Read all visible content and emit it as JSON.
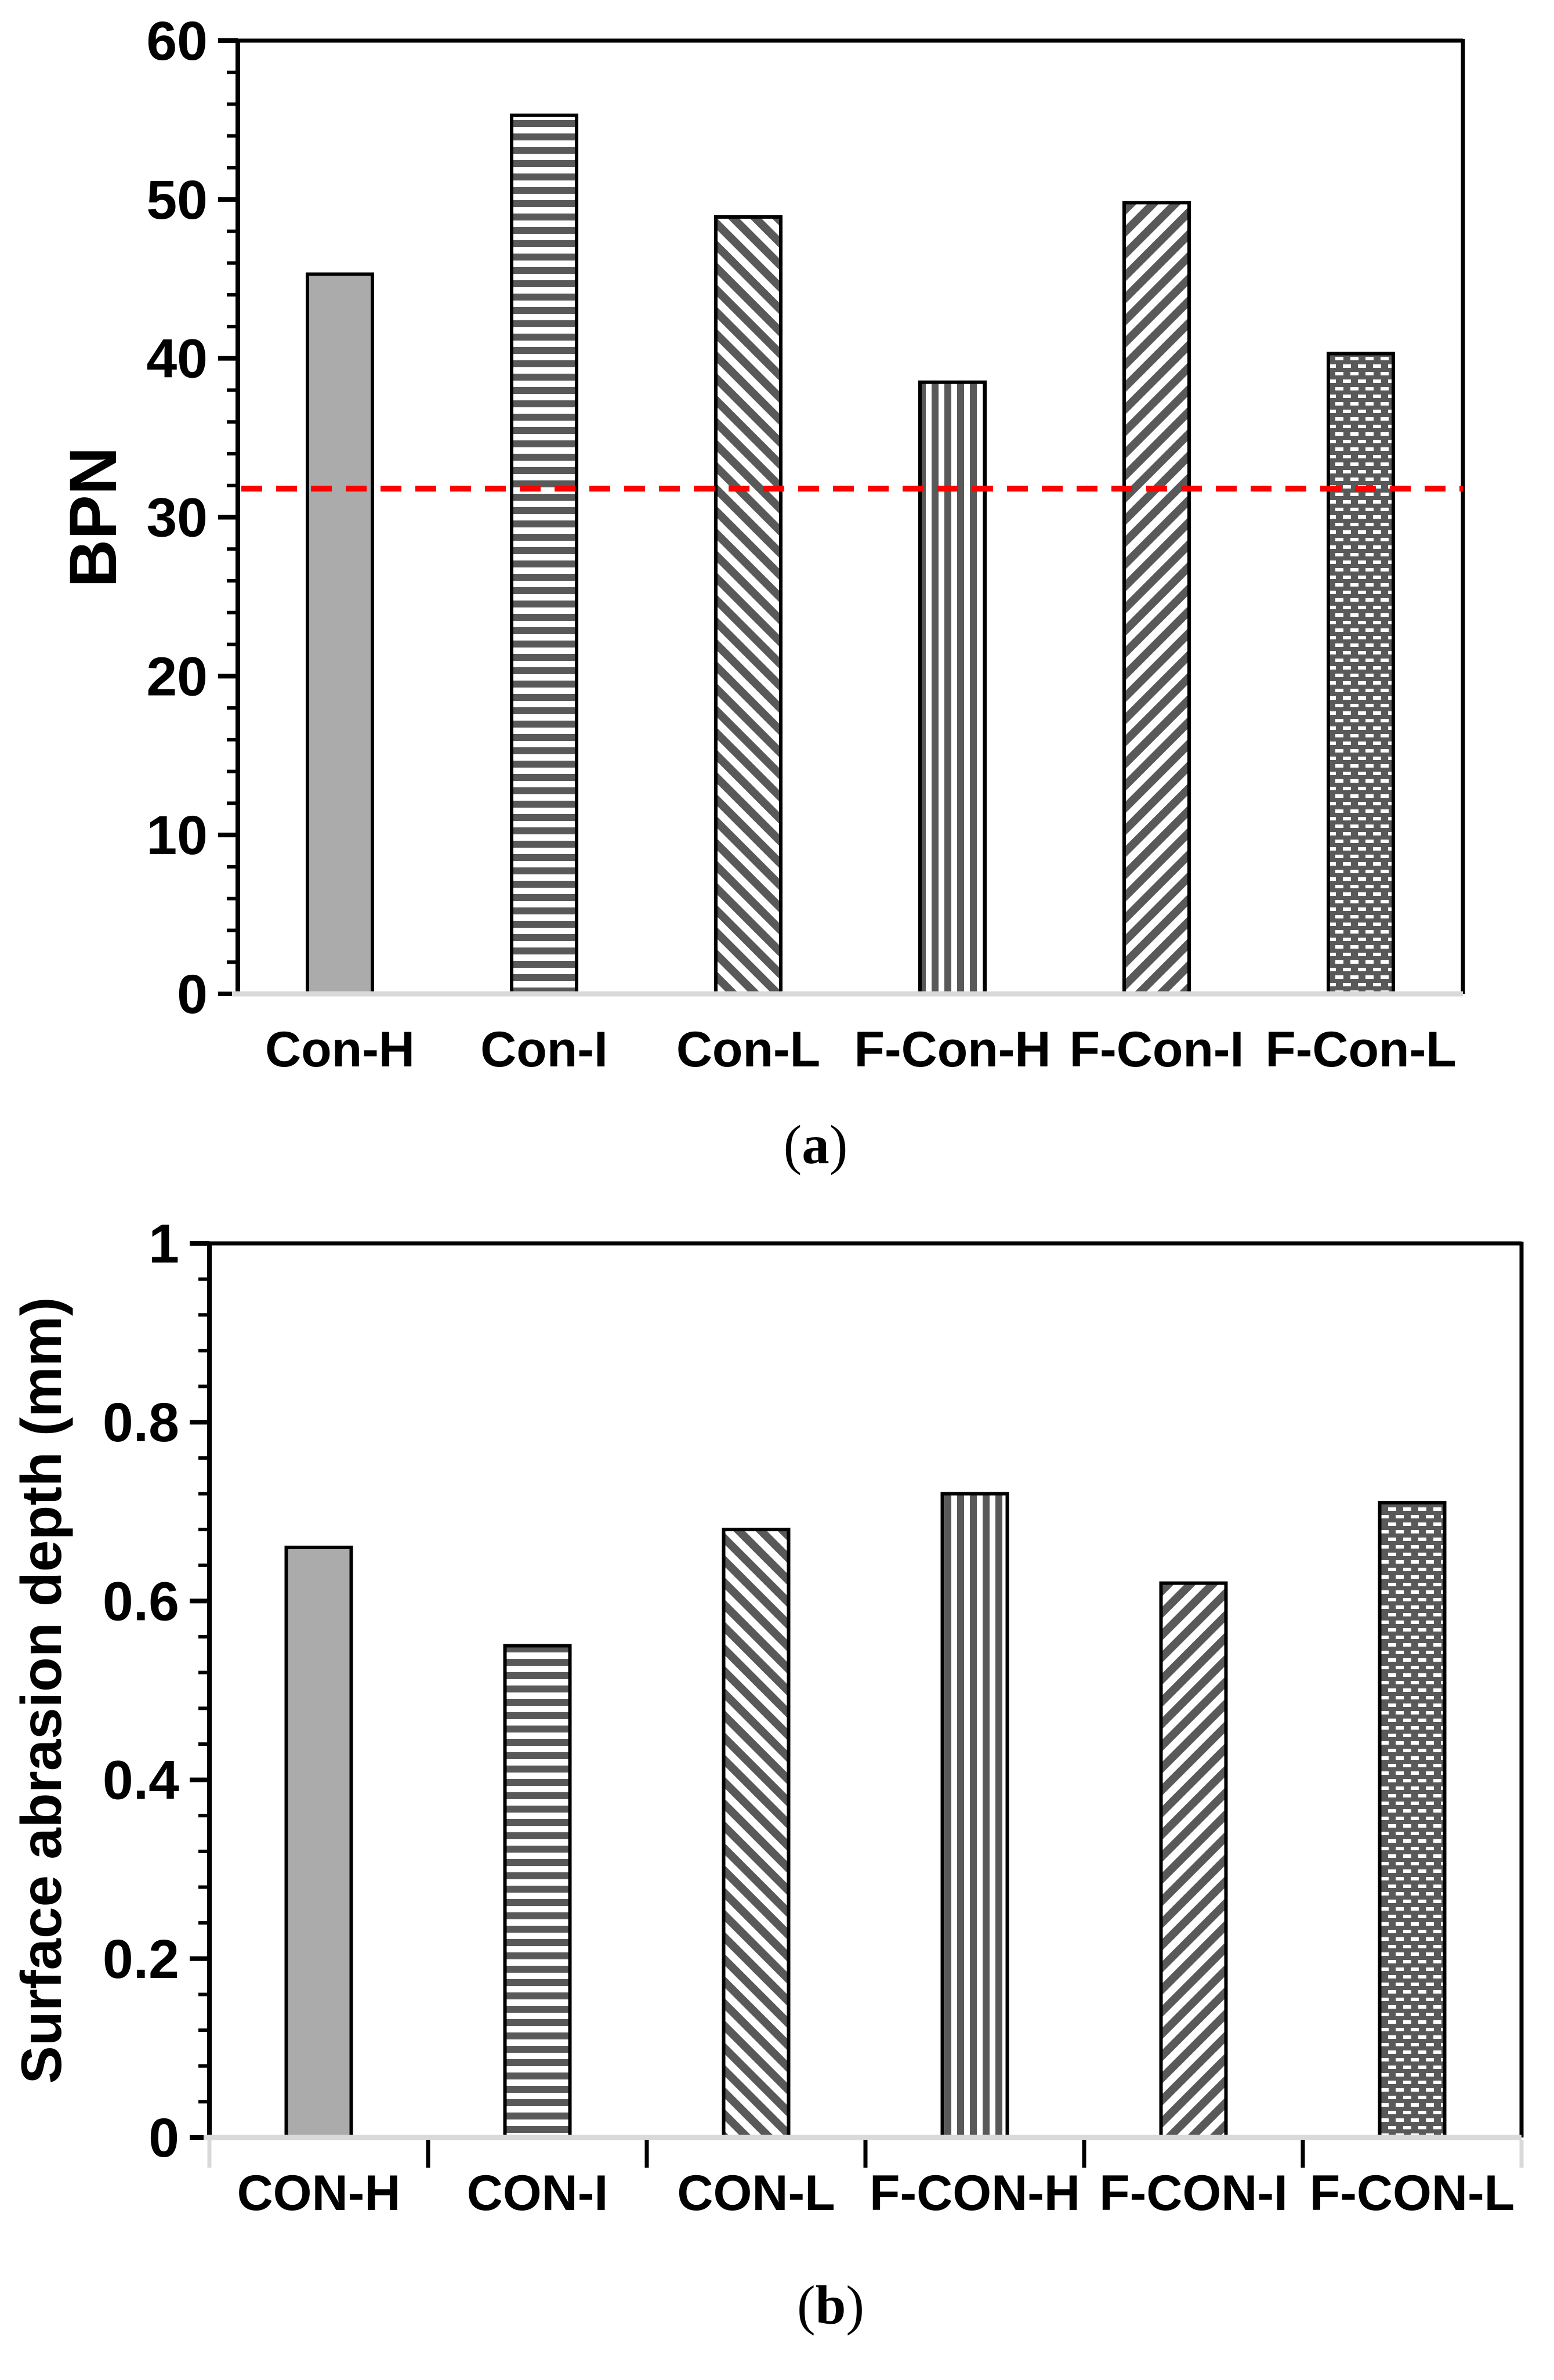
{
  "figure": {
    "background": "#FFFFFF",
    "caption_a": "(a)",
    "caption_b": "(b)"
  },
  "colors": {
    "bar_gray": "#ABABAB",
    "pattern_dark": "#595959",
    "outline": "#000000",
    "axis_black": "#000000",
    "axis_light": "#D9D9D9",
    "ref_red": "#FF0000",
    "text": "#000000"
  },
  "chart_data": [
    {
      "id": "a",
      "type": "bar",
      "caption": "(a)",
      "title": "",
      "xlabel": "",
      "ylabel": "BPN",
      "ylim": [
        0,
        60
      ],
      "ytick_step": 10,
      "yminor_step": 2,
      "ytick_labels": [
        "0",
        "10",
        "20",
        "30",
        "40",
        "50",
        "60"
      ],
      "categories": [
        "Con-H",
        "Con-I",
        "Con-L",
        "F-Con-H",
        "F-Con-I",
        "F-Con-L"
      ],
      "values": [
        45.3,
        55.3,
        48.9,
        38.5,
        49.8,
        40.3
      ],
      "bar_patterns": [
        "solid-gray",
        "horizontal-stripes",
        "diagonal-down-stripes",
        "vertical-stripes",
        "diagonal-up-stripes",
        "brick-dots"
      ],
      "ref_line": {
        "value": 31.8,
        "color": "#FF0000",
        "style": "dashed"
      },
      "grid": false,
      "legend": null,
      "x_boundary_ticks": false
    },
    {
      "id": "b",
      "type": "bar",
      "caption": "(b)",
      "title": "",
      "xlabel": "",
      "ylabel": "Surface abrasion depth (mm)",
      "ylim": [
        0,
        1
      ],
      "ytick_step": 0.2,
      "yminor_step": 0.04,
      "ytick_labels": [
        "0",
        "0.2",
        "0.4",
        "0.6",
        "0.8",
        "1"
      ],
      "categories": [
        "CON-H",
        "CON-I",
        "CON-L",
        "F-CON-H",
        "F-CON-I",
        "F-CON-L"
      ],
      "values": [
        0.66,
        0.55,
        0.68,
        0.72,
        0.62,
        0.71
      ],
      "bar_patterns": [
        "solid-gray",
        "horizontal-stripes",
        "diagonal-down-stripes",
        "vertical-stripes",
        "diagonal-up-stripes",
        "brick-dots"
      ],
      "ref_line": null,
      "grid": false,
      "legend": null,
      "x_boundary_ticks": true
    }
  ]
}
